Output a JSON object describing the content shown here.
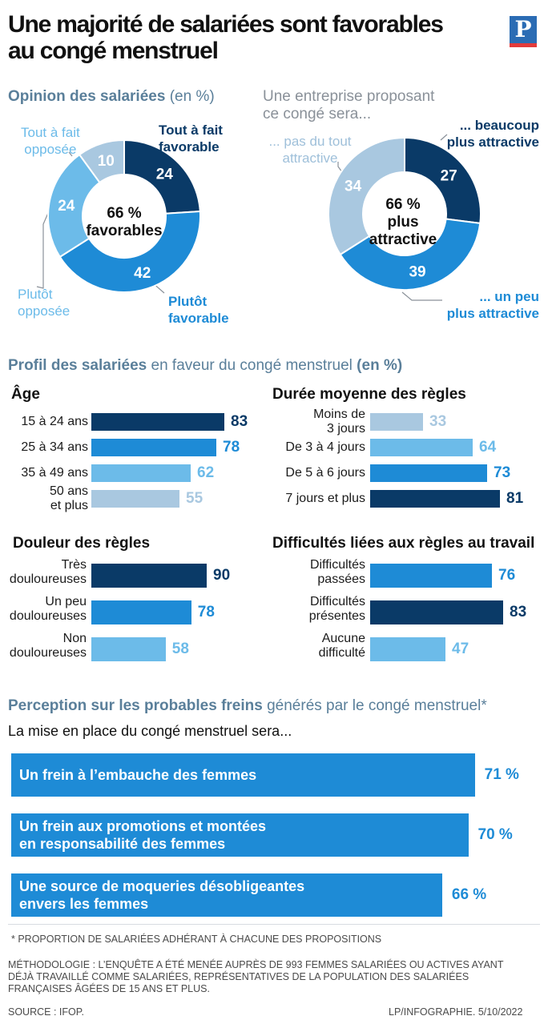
{
  "header": {
    "title_line1": "Une majorité de salariées sont favorables",
    "title_line2": "au congé menstruel",
    "logo_letter": "P"
  },
  "colors": {
    "dark": "#0a3a67",
    "mid": "#1e8bd6",
    "light": "#6cbbe9",
    "pale": "#a9c8e0",
    "section_title": "#5a7f9a"
  },
  "chart_data": [
    {
      "type": "pie",
      "title_bold": "Opinion des salariées",
      "title_rest": "(en %)",
      "center_line1": "66 %",
      "center_line2": "favorables",
      "slices": [
        {
          "label_line1": "Tout à fait",
          "label_line2": "favorable",
          "value": 24,
          "color": "#0a3a67"
        },
        {
          "label_line1": "Plutôt",
          "label_line2": "favorable",
          "value": 42,
          "color": "#1e8bd6"
        },
        {
          "label_line1": "Plutôt",
          "label_line2": "opposée",
          "value": 24,
          "color": "#6cbbe9"
        },
        {
          "label_line1": "Tout à fait",
          "label_line2": "opposée",
          "value": 10,
          "color": "#a9c8e0"
        }
      ]
    },
    {
      "type": "pie",
      "title_line1": "Une entreprise proposant",
      "title_line2": "ce congé sera...",
      "center_line1": "66 %",
      "center_line2": "plus",
      "center_line3": "attractive",
      "slices": [
        {
          "label_line1": "... beaucoup",
          "label_line2": "plus attractive",
          "value": 27,
          "color": "#0a3a67"
        },
        {
          "label_line1": "... un peu",
          "label_line2": "plus attractive",
          "value": 39,
          "color": "#1e8bd6"
        },
        {
          "label_line1": "... pas du tout",
          "label_line2": "attractive",
          "value": 34,
          "color": "#a9c8e0"
        }
      ]
    },
    {
      "type": "bar",
      "section_bold": "Profil des salariées",
      "section_rest": "en faveur du congé menstruel",
      "section_unit": "(en %)",
      "title": "Âge",
      "categories": [
        "15 à 24 ans",
        "25 à 34 ans",
        "35 à 49 ans",
        "50 ans et plus"
      ],
      "values": [
        83,
        78,
        62,
        55
      ],
      "colors": [
        "#0a3a67",
        "#1e8bd6",
        "#6cbbe9",
        "#a9c8e0"
      ]
    },
    {
      "type": "bar",
      "title": "Durée moyenne des règles",
      "categories": [
        "Moins de 3 jours",
        "De 3 à 4 jours",
        "De 5 à 6 jours",
        "7 jours et plus"
      ],
      "values": [
        33,
        64,
        73,
        81
      ],
      "colors": [
        "#a9c8e0",
        "#6cbbe9",
        "#1e8bd6",
        "#0a3a67"
      ]
    },
    {
      "type": "bar",
      "title": "Douleur des règles",
      "categories": [
        "Très douloureuses",
        "Un peu douloureuses",
        "Non douloureuses"
      ],
      "values": [
        90,
        78,
        58
      ],
      "colors": [
        "#0a3a67",
        "#1e8bd6",
        "#6cbbe9"
      ]
    },
    {
      "type": "bar",
      "title": "Difficultés liées aux règles au travail",
      "categories": [
        "Difficultés passées",
        "Difficultés présentes",
        "Aucune difficulté"
      ],
      "values": [
        76,
        83,
        47
      ],
      "colors": [
        "#1e8bd6",
        "#0a3a67",
        "#6cbbe9"
      ]
    },
    {
      "type": "bar",
      "section_bold": "Perception sur les probables freins",
      "section_rest": "générés par le congé menstruel*",
      "intro": "La mise en place du congé menstruel sera...",
      "categories": [
        {
          "line1": "Un frein à l’embauche des femmes",
          "line2": ""
        },
        {
          "line1": "Un frein aux promotions et montées",
          "line2": "en responsabilité des femmes"
        },
        {
          "line1": "Une source de moqueries désobligeantes",
          "line2": "envers les femmes"
        }
      ],
      "values": [
        71,
        70,
        66
      ],
      "value_labels": [
        "71 %",
        "70 %",
        "66 %"
      ]
    }
  ],
  "footer": {
    "footnote": "* PROPORTION DE SALARIÉES ADHÉRANT À CHACUNE DES PROPOSITIONS",
    "methodology_line1": "MÉTHODOLOGIE : L’ENQUÊTE A ÉTÉ MENÉE AUPRÈS DE 993 FEMMES SALARIÉES OU ACTIVES AYANT",
    "methodology_line2": "DÉJÀ TRAVAILLÉ COMME SALARIÉES, REPRÉSENTATIVES DE LA POPULATION DES SALARIÉES",
    "methodology_line3": "FRANÇAISES ÂGÉES DE 15 ANS ET PLUS.",
    "source": "SOURCE : IFOP.",
    "credit": "LP/INFOGRAPHIE.  5/10/2022"
  }
}
